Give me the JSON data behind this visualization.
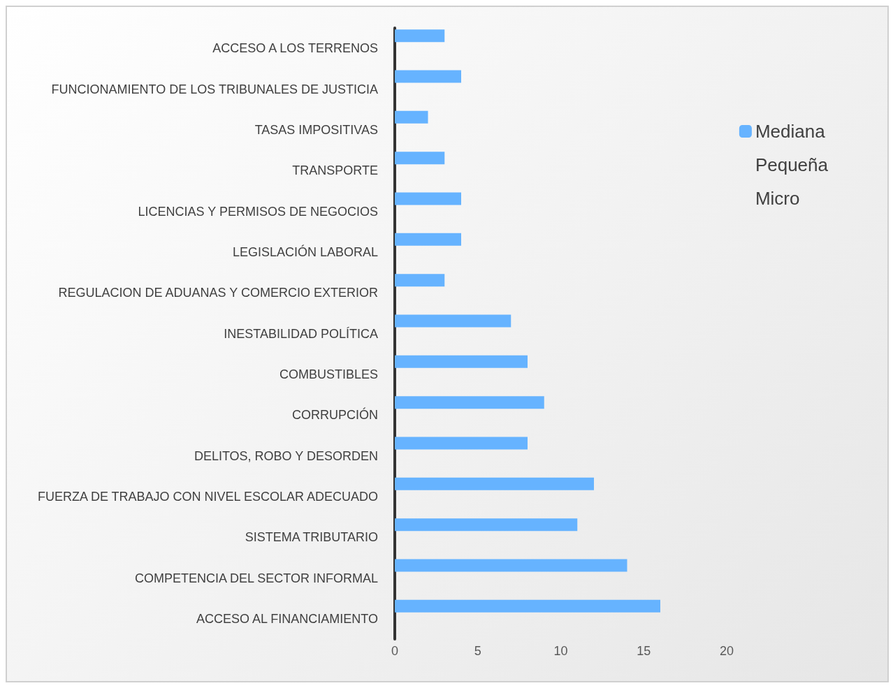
{
  "chart_data": {
    "type": "bar",
    "orientation": "horizontal",
    "categories": [
      "ACCESO A LOS TERRENOS",
      "FUNCIONAMIENTO DE LOS TRIBUNALES DE JUSTICIA",
      "TASAS IMPOSITIVAS",
      "TRANSPORTE",
      "LICENCIAS Y PERMISOS DE NEGOCIOS",
      "LEGISLACIÓN LABORAL",
      "REGULACION DE ADUANAS Y COMERCIO EXTERIOR",
      "INESTABILIDAD POLÍTICA",
      "COMBUSTIBLES",
      "CORRUPCIÓN",
      "DELITOS, ROBO Y DESORDEN",
      "FUERZA DE TRABAJO CON NIVEL ESCOLAR ADECUADO",
      "SISTEMA TRIBUTARIO",
      "COMPETENCIA DEL SECTOR INFORMAL",
      "ACCESO AL FINANCIAMIENTO"
    ],
    "series": [
      {
        "name": "Mediana",
        "color": "#66b3ff",
        "values": [
          3,
          4,
          2,
          3,
          4,
          4,
          3,
          7,
          8,
          9,
          8,
          12,
          11,
          14,
          16
        ]
      },
      {
        "name": "Pequeña",
        "values": [
          null,
          null,
          null,
          null,
          null,
          null,
          null,
          null,
          null,
          null,
          null,
          null,
          null,
          null,
          null
        ]
      },
      {
        "name": "Micro",
        "values": [
          null,
          null,
          null,
          null,
          null,
          null,
          null,
          null,
          null,
          null,
          null,
          null,
          null,
          null,
          null
        ]
      }
    ],
    "xlim": [
      0,
      20
    ],
    "xticks": [
      0,
      5,
      10,
      15,
      20
    ],
    "grid": false,
    "legend": "right"
  }
}
